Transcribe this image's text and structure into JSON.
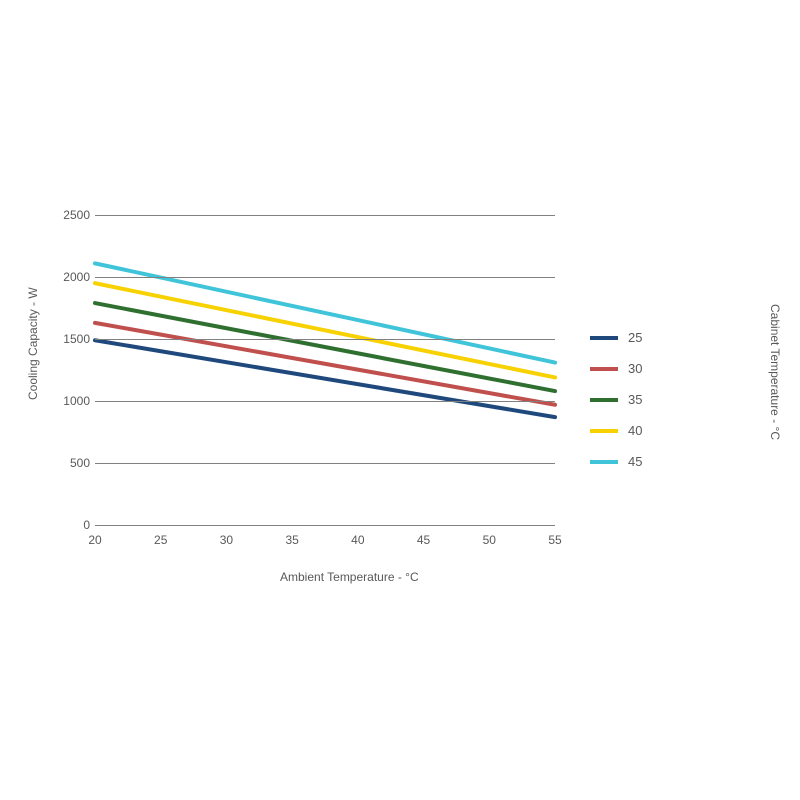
{
  "chart": {
    "type": "line",
    "xlabel": "Ambient Temperature - °C",
    "ylabel": "Cooling Capacity - W",
    "right_label": "Cabinet Temperature - °C",
    "label_fontsize": 12,
    "tick_fontsize": 12,
    "label_color": "#595959",
    "background_color": "#ffffff",
    "grid_color": "#808080",
    "line_width": 4,
    "xlim": [
      20,
      55
    ],
    "ylim": [
      0,
      2500
    ],
    "xticks": [
      20,
      25,
      30,
      35,
      40,
      45,
      50,
      55
    ],
    "yticks": [
      0,
      500,
      1000,
      1500,
      2000,
      2500
    ],
    "series": [
      {
        "label": "25",
        "color": "#1f497d",
        "x": [
          20,
          55
        ],
        "y": [
          1490,
          870
        ]
      },
      {
        "label": "30",
        "color": "#c0504d",
        "x": [
          20,
          55
        ],
        "y": [
          1630,
          970
        ]
      },
      {
        "label": "35",
        "color": "#2f7030",
        "x": [
          20,
          55
        ],
        "y": [
          1790,
          1080
        ]
      },
      {
        "label": "40",
        "color": "#f7d100",
        "x": [
          20,
          55
        ],
        "y": [
          1950,
          1190
        ]
      },
      {
        "label": "45",
        "color": "#3fc4d9",
        "x": [
          20,
          55
        ],
        "y": [
          2110,
          1310
        ]
      }
    ],
    "legend_position": "right"
  }
}
